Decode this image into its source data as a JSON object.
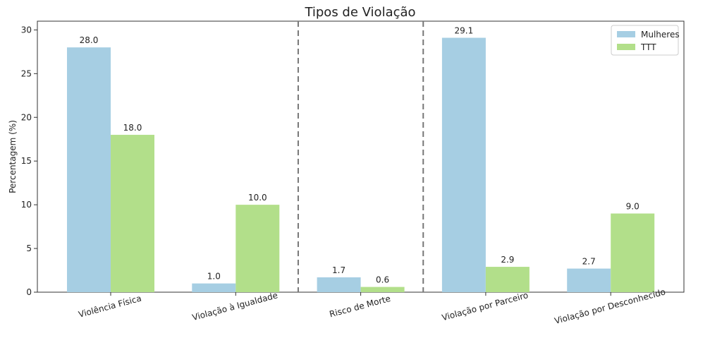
{
  "chart_data": {
    "type": "bar",
    "title": "Tipos de Violação",
    "xlabel": "",
    "ylabel": "Percentagem (%)",
    "categories": [
      "Violência Física",
      "Violação à Igualdade",
      "Risco de Morte",
      "Violação por Parceiro",
      "Violação por Desconhecido"
    ],
    "series": [
      {
        "name": "Mulheres",
        "color": "#a6cee3",
        "values": [
          28.0,
          1.0,
          1.7,
          29.1,
          2.7
        ],
        "labels": [
          "28.0",
          "1.0",
          "1.7",
          "29.1",
          "2.7"
        ]
      },
      {
        "name": "TTT",
        "color": "#b2df8a",
        "values": [
          18.0,
          10.0,
          0.6,
          2.9,
          9.0
        ],
        "labels": [
          "18.0",
          "10.0",
          "0.6",
          "2.9",
          "9.0"
        ]
      }
    ],
    "ylim": [
      0,
      31
    ],
    "yticks": [
      0,
      5,
      10,
      15,
      20,
      25,
      30
    ],
    "ytick_labels": [
      "0",
      "5",
      "10",
      "15",
      "20",
      "25",
      "30"
    ],
    "separators_after_category": [
      1,
      2
    ],
    "separator_style": "dashed",
    "legend_position": "top-right",
    "grid": false,
    "x_label_rotation_deg": -15
  }
}
